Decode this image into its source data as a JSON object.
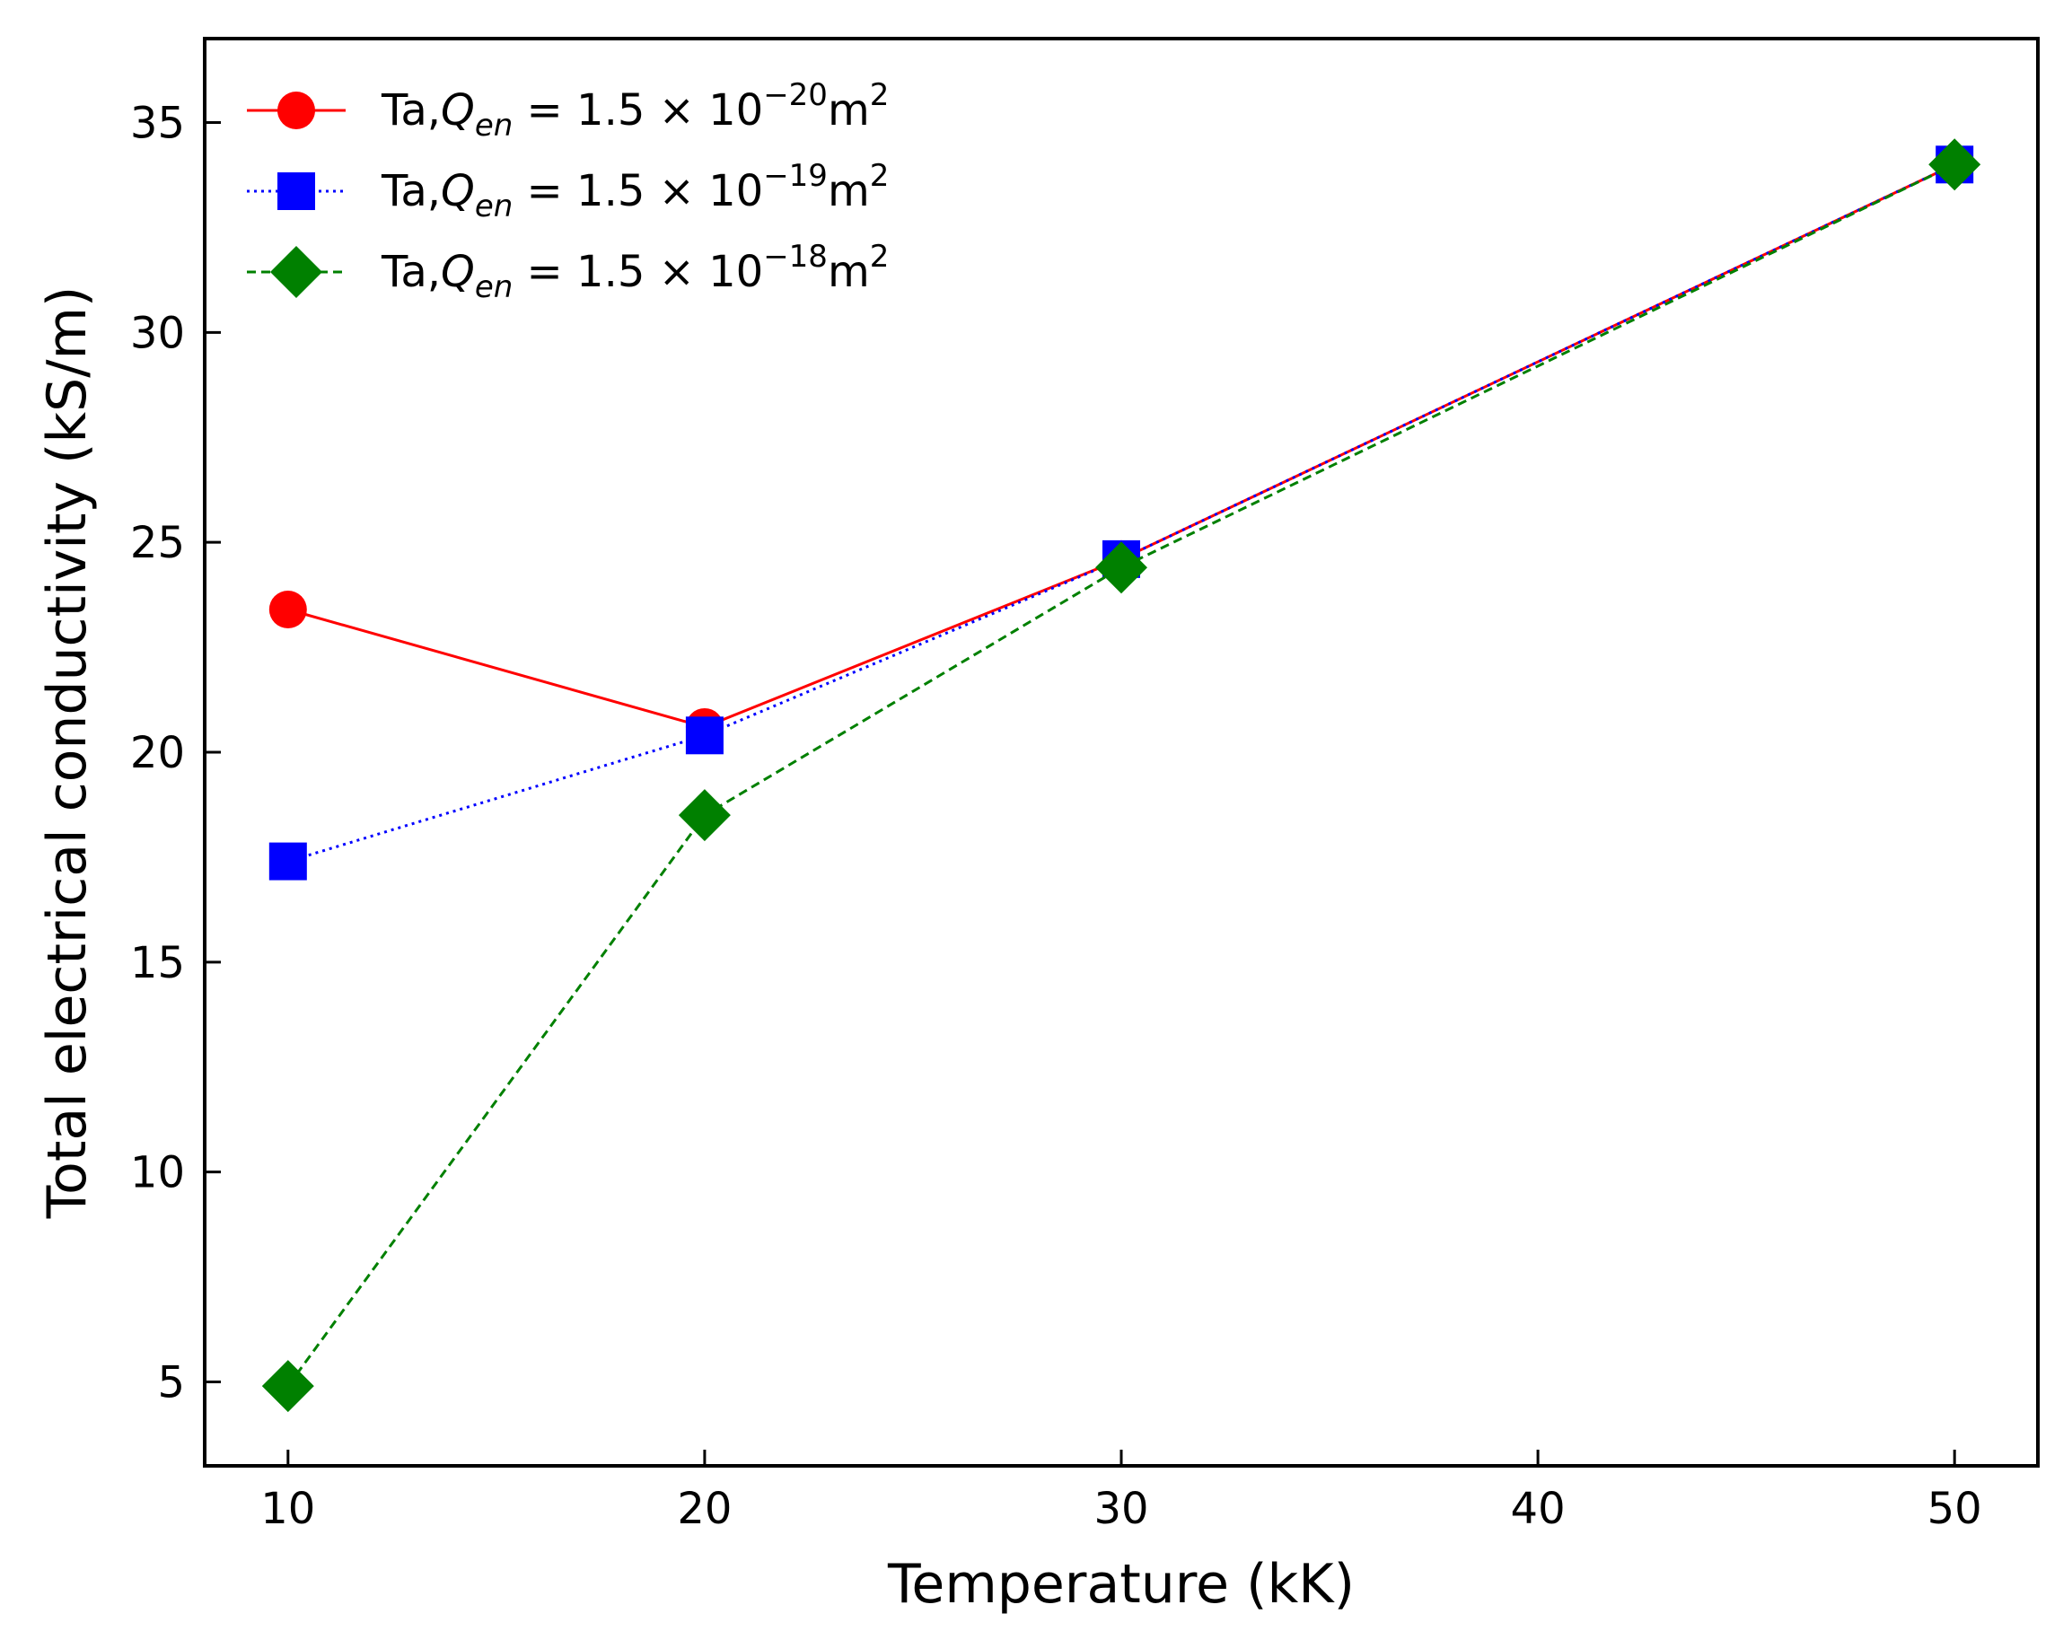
{
  "chart_data": {
    "type": "line",
    "title": "",
    "xlabel": "Temperature (kK)",
    "ylabel": "Total electrical conductivity (kS/m)",
    "xlim": [
      8,
      52
    ],
    "ylim": [
      3,
      37
    ],
    "xticks": [
      10,
      20,
      30,
      40,
      50
    ],
    "yticks": [
      5,
      10,
      15,
      20,
      25,
      30,
      35
    ],
    "legend_position": "top-left",
    "grid": false,
    "series": [
      {
        "name": "Ta,Q_en = 1.5 × 10^−20 m^2",
        "legend": {
          "prefix": "Ta,",
          "q": "Q",
          "q_sub": "en",
          "eq": " = 1.5 × 10",
          "exp": "−20",
          "unit": "m",
          "unit_exp": "2"
        },
        "color": "#ff0000",
        "marker": "circle",
        "line_style": "solid",
        "x": [
          10,
          20,
          30,
          50
        ],
        "y": [
          23.4,
          20.6,
          24.6,
          34.0
        ]
      },
      {
        "name": "Ta,Q_en = 1.5 × 10^−19 m^2",
        "legend": {
          "prefix": "Ta,",
          "q": "Q",
          "q_sub": "en",
          "eq": " = 1.5 × 10",
          "exp": "−19",
          "unit": "m",
          "unit_exp": "2"
        },
        "color": "#0000ff",
        "marker": "square",
        "line_style": "dotted",
        "x": [
          10,
          20,
          30,
          50
        ],
        "y": [
          17.4,
          20.4,
          24.6,
          34.0
        ]
      },
      {
        "name": "Ta,Q_en = 1.5 × 10^−18 m^2",
        "legend": {
          "prefix": "Ta,",
          "q": "Q",
          "q_sub": "en",
          "eq": " = 1.5 × 10",
          "exp": "−18",
          "unit": "m",
          "unit_exp": "2"
        },
        "color": "#008000",
        "marker": "diamond",
        "line_style": "dashed",
        "x": [
          10,
          20,
          30,
          50
        ],
        "y": [
          4.9,
          18.5,
          24.4,
          34.0
        ]
      }
    ]
  }
}
